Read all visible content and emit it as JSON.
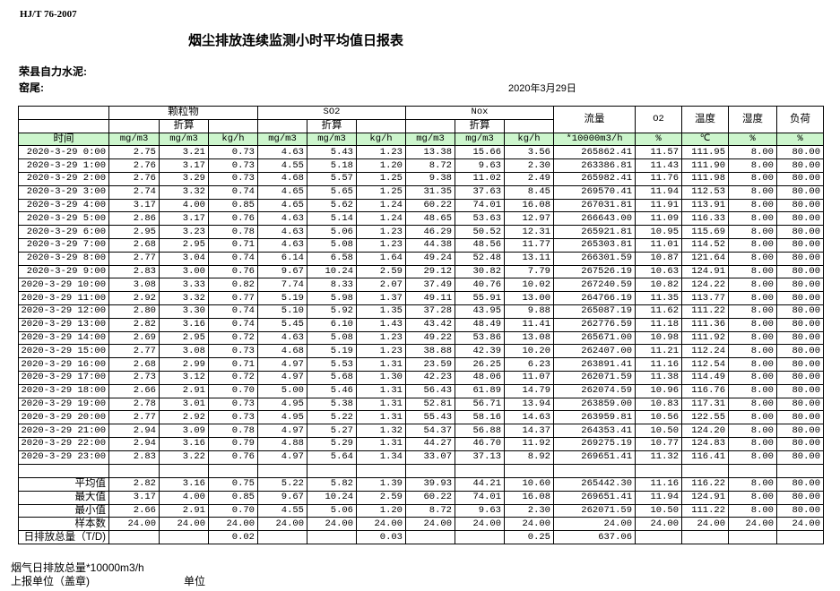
{
  "header": {
    "standard": "HJ/T  76-2007",
    "title": "烟尘排放连续监测小时平均值日报表",
    "company": "荣县自力水泥:",
    "kiln": "窑尾:",
    "date": "2020年3月29日"
  },
  "columns": {
    "particle": "颗粒物",
    "so2": "SO2",
    "nox": "Nox",
    "converted": "折算",
    "flow": "流量",
    "o2": "O2",
    "temp": "温度",
    "humidity": "湿度",
    "load": "负荷",
    "time": "时间",
    "units": [
      "mg/m3",
      "mg/m3",
      "kg/h",
      "mg/m3",
      "mg/m3",
      "kg/h",
      "mg/m3",
      "mg/m3",
      "kg/h",
      "*10000m3/h",
      "%",
      "℃",
      "%",
      "%"
    ]
  },
  "rows": [
    [
      "2020-3-29 0:00",
      "2.75",
      "3.21",
      "0.73",
      "4.63",
      "5.43",
      "1.23",
      "13.38",
      "15.66",
      "3.56",
      "265862.41",
      "11.57",
      "111.95",
      "8.00",
      "80.00"
    ],
    [
      "2020-3-29 1:00",
      "2.76",
      "3.17",
      "0.73",
      "4.55",
      "5.18",
      "1.20",
      "8.72",
      "9.63",
      "2.30",
      "263386.81",
      "11.43",
      "111.90",
      "8.00",
      "80.00"
    ],
    [
      "2020-3-29 2:00",
      "2.76",
      "3.29",
      "0.73",
      "4.68",
      "5.57",
      "1.25",
      "9.38",
      "11.02",
      "2.49",
      "265982.41",
      "11.76",
      "111.98",
      "8.00",
      "80.00"
    ],
    [
      "2020-3-29 3:00",
      "2.74",
      "3.32",
      "0.74",
      "4.65",
      "5.65",
      "1.25",
      "31.35",
      "37.63",
      "8.45",
      "269570.41",
      "11.94",
      "112.53",
      "8.00",
      "80.00"
    ],
    [
      "2020-3-29 4:00",
      "3.17",
      "4.00",
      "0.85",
      "4.65",
      "5.62",
      "1.24",
      "60.22",
      "74.01",
      "16.08",
      "267031.81",
      "11.91",
      "113.91",
      "8.00",
      "80.00"
    ],
    [
      "2020-3-29 5:00",
      "2.86",
      "3.17",
      "0.76",
      "4.63",
      "5.14",
      "1.24",
      "48.65",
      "53.63",
      "12.97",
      "266643.00",
      "11.09",
      "116.33",
      "8.00",
      "80.00"
    ],
    [
      "2020-3-29 6:00",
      "2.95",
      "3.23",
      "0.78",
      "4.63",
      "5.06",
      "1.23",
      "46.29",
      "50.52",
      "12.31",
      "265921.81",
      "10.95",
      "115.69",
      "8.00",
      "80.00"
    ],
    [
      "2020-3-29 7:00",
      "2.68",
      "2.95",
      "0.71",
      "4.63",
      "5.08",
      "1.23",
      "44.38",
      "48.56",
      "11.77",
      "265303.81",
      "11.01",
      "114.52",
      "8.00",
      "80.00"
    ],
    [
      "2020-3-29 8:00",
      "2.77",
      "3.04",
      "0.74",
      "6.14",
      "6.58",
      "1.64",
      "49.24",
      "52.48",
      "13.11",
      "266301.59",
      "10.87",
      "121.64",
      "8.00",
      "80.00"
    ],
    [
      "2020-3-29 9:00",
      "2.83",
      "3.00",
      "0.76",
      "9.67",
      "10.24",
      "2.59",
      "29.12",
      "30.82",
      "7.79",
      "267526.19",
      "10.63",
      "124.91",
      "8.00",
      "80.00"
    ],
    [
      "2020-3-29 10:00",
      "3.08",
      "3.33",
      "0.82",
      "7.74",
      "8.33",
      "2.07",
      "37.49",
      "40.76",
      "10.02",
      "267240.59",
      "10.82",
      "124.22",
      "8.00",
      "80.00"
    ],
    [
      "2020-3-29 11:00",
      "2.92",
      "3.32",
      "0.77",
      "5.19",
      "5.98",
      "1.37",
      "49.11",
      "55.91",
      "13.00",
      "264766.19",
      "11.35",
      "113.77",
      "8.00",
      "80.00"
    ],
    [
      "2020-3-29 12:00",
      "2.80",
      "3.30",
      "0.74",
      "5.10",
      "5.92",
      "1.35",
      "37.28",
      "43.95",
      "9.88",
      "265087.19",
      "11.62",
      "111.22",
      "8.00",
      "80.00"
    ],
    [
      "2020-3-29 13:00",
      "2.82",
      "3.16",
      "0.74",
      "5.45",
      "6.10",
      "1.43",
      "43.42",
      "48.49",
      "11.41",
      "262776.59",
      "11.18",
      "111.36",
      "8.00",
      "80.00"
    ],
    [
      "2020-3-29 14:00",
      "2.69",
      "2.95",
      "0.72",
      "4.63",
      "5.08",
      "1.23",
      "49.22",
      "53.86",
      "13.08",
      "265671.00",
      "10.98",
      "111.92",
      "8.00",
      "80.00"
    ],
    [
      "2020-3-29 15:00",
      "2.77",
      "3.08",
      "0.73",
      "4.68",
      "5.19",
      "1.23",
      "38.88",
      "42.39",
      "10.20",
      "262407.00",
      "11.21",
      "112.24",
      "8.00",
      "80.00"
    ],
    [
      "2020-3-29 16:00",
      "2.68",
      "2.99",
      "0.71",
      "4.97",
      "5.53",
      "1.31",
      "23.59",
      "26.25",
      "6.23",
      "263891.41",
      "11.16",
      "112.54",
      "8.00",
      "80.00"
    ],
    [
      "2020-3-29 17:00",
      "2.73",
      "3.12",
      "0.72",
      "4.97",
      "5.68",
      "1.30",
      "42.23",
      "48.06",
      "11.07",
      "262071.59",
      "11.38",
      "114.49",
      "8.00",
      "80.00"
    ],
    [
      "2020-3-29 18:00",
      "2.66",
      "2.91",
      "0.70",
      "5.00",
      "5.46",
      "1.31",
      "56.43",
      "61.89",
      "14.79",
      "262074.59",
      "10.96",
      "116.76",
      "8.00",
      "80.00"
    ],
    [
      "2020-3-29 19:00",
      "2.78",
      "3.01",
      "0.73",
      "4.95",
      "5.38",
      "1.31",
      "52.81",
      "56.71",
      "13.94",
      "263859.00",
      "10.83",
      "117.31",
      "8.00",
      "80.00"
    ],
    [
      "2020-3-29 20:00",
      "2.77",
      "2.92",
      "0.73",
      "4.95",
      "5.22",
      "1.31",
      "55.43",
      "58.16",
      "14.63",
      "263959.81",
      "10.56",
      "122.55",
      "8.00",
      "80.00"
    ],
    [
      "2020-3-29 21:00",
      "2.94",
      "3.09",
      "0.78",
      "4.97",
      "5.27",
      "1.32",
      "54.37",
      "56.88",
      "14.37",
      "264353.41",
      "10.50",
      "124.20",
      "8.00",
      "80.00"
    ],
    [
      "2020-3-29 22:00",
      "2.94",
      "3.16",
      "0.79",
      "4.88",
      "5.29",
      "1.31",
      "44.27",
      "46.70",
      "11.92",
      "269275.19",
      "10.77",
      "124.83",
      "8.00",
      "80.00"
    ],
    [
      "2020-3-29 23:00",
      "2.83",
      "3.22",
      "0.76",
      "4.97",
      "5.64",
      "1.34",
      "33.07",
      "37.13",
      "8.92",
      "269651.41",
      "11.32",
      "116.41",
      "8.00",
      "80.00"
    ]
  ],
  "stats": [
    [
      "平均值",
      "2.82",
      "3.16",
      "0.75",
      "5.22",
      "5.82",
      "1.39",
      "39.93",
      "44.21",
      "10.60",
      "265442.30",
      "11.16",
      "116.22",
      "8.00",
      "80.00"
    ],
    [
      "最大值",
      "3.17",
      "4.00",
      "0.85",
      "9.67",
      "10.24",
      "2.59",
      "60.22",
      "74.01",
      "16.08",
      "269651.41",
      "11.94",
      "124.91",
      "8.00",
      "80.00"
    ],
    [
      "最小值",
      "2.66",
      "2.91",
      "0.70",
      "4.55",
      "5.06",
      "1.20",
      "8.72",
      "9.63",
      "2.30",
      "262071.59",
      "10.50",
      "111.22",
      "8.00",
      "80.00"
    ],
    [
      "样本数",
      "24.00",
      "24.00",
      "24.00",
      "24.00",
      "24.00",
      "24.00",
      "24.00",
      "24.00",
      "24.00",
      "24.00",
      "24.00",
      "24.00",
      "24.00",
      "24.00"
    ],
    [
      "日排放总量（T/D)",
      "",
      "",
      "0.02",
      "",
      "",
      "0.03",
      "",
      "",
      "0.25",
      "637.06",
      "",
      "",
      "",
      ""
    ]
  ],
  "footer": {
    "flue_total": "烟气日排放总量*10000m3/h",
    "reporting_unit": "上报单位（盖章)",
    "unit": "单位"
  }
}
